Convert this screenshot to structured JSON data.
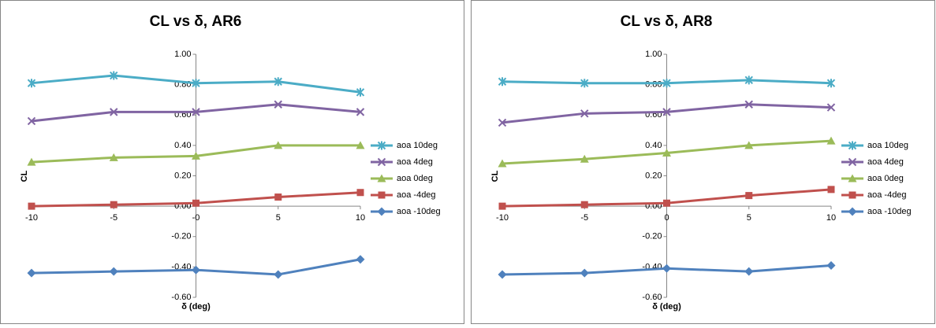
{
  "chart_data": [
    {
      "type": "line",
      "title": "CL vs δ, AR6",
      "xlabel": "δ (deg)",
      "ylabel": "CL",
      "x": [
        -10,
        -5,
        0,
        5,
        10
      ],
      "xlim": [
        -10,
        10
      ],
      "xticks": [
        -10,
        -5,
        {
          "value": 0,
          "label": "-0"
        },
        5,
        10
      ],
      "ylim": [
        -0.6,
        1.0
      ],
      "yticks": [
        {
          "value": 1.0,
          "label": "1.00"
        },
        {
          "value": 0.8,
          "label": "0.80"
        },
        {
          "value": 0.6,
          "label": "0.60"
        },
        {
          "value": 0.4,
          "label": "0.40"
        },
        {
          "value": 0.2,
          "label": "0.20"
        },
        {
          "value": 0,
          "label": "0.00"
        },
        {
          "value": -0.2,
          "label": "-0.20"
        },
        {
          "value": -0.4,
          "label": "-0.40"
        },
        {
          "value": -0.6,
          "label": "-0.60"
        }
      ],
      "legend": "right",
      "series": [
        {
          "name": "aoa 10deg",
          "color": "#4bacc6",
          "marker": "star",
          "values": [
            0.81,
            0.86,
            0.81,
            0.82,
            0.75
          ]
        },
        {
          "name": "aoa 4deg",
          "color": "#8064a2",
          "marker": "x",
          "values": [
            0.56,
            0.62,
            0.62,
            0.67,
            0.62
          ]
        },
        {
          "name": "aoa 0deg",
          "color": "#9bbb59",
          "marker": "triangle",
          "values": [
            0.29,
            0.32,
            0.33,
            0.4,
            0.4
          ]
        },
        {
          "name": "aoa -4deg",
          "color": "#c0504d",
          "marker": "square",
          "values": [
            0.0,
            0.01,
            0.02,
            0.06,
            0.09
          ]
        },
        {
          "name": "aoa -10deg",
          "color": "#4f81bd",
          "marker": "diamond",
          "values": [
            -0.44,
            -0.43,
            -0.42,
            -0.45,
            -0.35
          ]
        }
      ]
    },
    {
      "type": "line",
      "title": "CL vs δ, AR8",
      "xlabel": "δ (deg)",
      "ylabel": "CL",
      "x": [
        -10,
        -5,
        0,
        5,
        10
      ],
      "xlim": [
        -10,
        10
      ],
      "xticks": [
        -10,
        -5,
        0,
        5,
        10
      ],
      "ylim": [
        -0.6,
        1.0
      ],
      "yticks": [
        {
          "value": 1.0,
          "label": "1.00"
        },
        {
          "value": 0.8,
          "label": "0.80"
        },
        {
          "value": 0.6,
          "label": "0.60"
        },
        {
          "value": 0.4,
          "label": "0.40"
        },
        {
          "value": 0.2,
          "label": "0.20"
        },
        {
          "value": 0,
          "label": "0.00"
        },
        {
          "value": -0.2,
          "label": "-0.20"
        },
        {
          "value": -0.4,
          "label": "-0.40"
        },
        {
          "value": -0.6,
          "label": "-0.60"
        }
      ],
      "legend": "right",
      "series": [
        {
          "name": "aoa 10deg",
          "color": "#4bacc6",
          "marker": "star",
          "values": [
            0.82,
            0.81,
            0.81,
            0.83,
            0.81
          ]
        },
        {
          "name": "aoa 4deg",
          "color": "#8064a2",
          "marker": "x",
          "values": [
            0.55,
            0.61,
            0.62,
            0.67,
            0.65
          ]
        },
        {
          "name": "aoa 0deg",
          "color": "#9bbb59",
          "marker": "triangle",
          "values": [
            0.28,
            0.31,
            0.35,
            0.4,
            0.43
          ]
        },
        {
          "name": "aoa -4deg",
          "color": "#c0504d",
          "marker": "square",
          "values": [
            0.0,
            0.01,
            0.02,
            0.07,
            0.11
          ]
        },
        {
          "name": "aoa -10deg",
          "color": "#4f81bd",
          "marker": "diamond",
          "values": [
            -0.45,
            -0.44,
            -0.41,
            -0.43,
            -0.39
          ]
        }
      ]
    }
  ]
}
